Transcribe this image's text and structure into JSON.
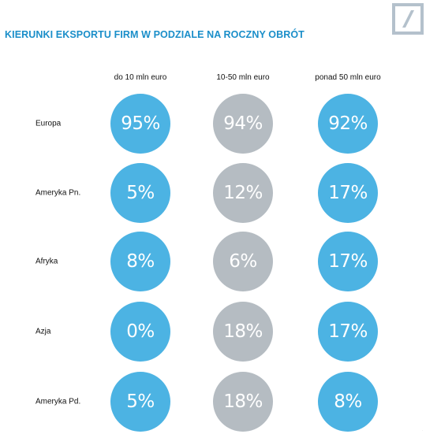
{
  "header": {
    "title": "KIERUNKI EKSPORTU FIRM W PODZIALE NA ROCZNY OBRÓT",
    "logo": "deutsche-bank-slash-logo"
  },
  "colors": {
    "title": "#1a8ec9",
    "logo": "#b4c1cc",
    "blue": "#4cb3e3",
    "gray": "#b5bcc2"
  },
  "chart_data": {
    "type": "table",
    "title": "KIERUNKI EKSPORTU FIRM W PODZIALE NA ROCZNY OBRÓT",
    "columns": [
      "do 10 mln euro",
      "10-50 mln euro",
      "ponad 50 mln euro"
    ],
    "column_colors": [
      "blue",
      "gray",
      "blue"
    ],
    "rows": [
      {
        "label": "Europa",
        "values": [
          95,
          94,
          92
        ],
        "display": [
          "95%",
          "94%",
          "92%"
        ]
      },
      {
        "label": "Ameryka Pn.",
        "values": [
          5,
          12,
          17
        ],
        "display": [
          "5%",
          "12%",
          "17%"
        ]
      },
      {
        "label": "Afryka",
        "values": [
          8,
          6,
          17
        ],
        "display": [
          "8%",
          "6%",
          "17%"
        ]
      },
      {
        "label": "Azja",
        "values": [
          0,
          18,
          17
        ],
        "display": [
          "0%",
          "18%",
          "17%"
        ]
      },
      {
        "label": "Ameryka Pd.",
        "values": [
          5,
          18,
          8
        ],
        "display": [
          "5%",
          "18%",
          "8%"
        ]
      }
    ],
    "unit": "%"
  }
}
